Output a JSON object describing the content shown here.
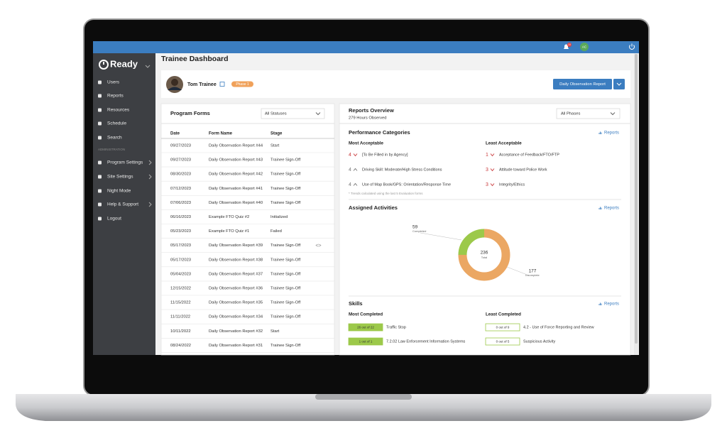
{
  "topbar": {
    "notifications": "10",
    "user_initials": "AC"
  },
  "sidebar": {
    "logo": "Ready",
    "items": [
      "Users",
      "Reports",
      "Resources",
      "Schedule",
      "Search"
    ],
    "section": "ADMINISTRATION",
    "admin_items": [
      "Program Settings",
      "Site Settings",
      "Night Mode",
      "Help & Support",
      "Logout"
    ]
  },
  "header": {
    "title": "Trainee Dashboard",
    "trainee": "Tom Trainee",
    "phase": "Phase 1",
    "button": "Daily Observation Report"
  },
  "program_forms": {
    "title": "Program Forms",
    "filter": "All Statuses",
    "columns": [
      "Date",
      "Form Name",
      "Stage"
    ],
    "rows": [
      [
        "09/27/2023",
        "Daily Observation Report #44",
        "Start"
      ],
      [
        "09/27/2023",
        "Daily Observation Report #43",
        "Trainee Sign-Off"
      ],
      [
        "08/30/2023",
        "Daily Observation Report #42",
        "Trainee Sign-Off"
      ],
      [
        "07/12/2023",
        "Daily Observation Report #41",
        "Trainee Sign-Off"
      ],
      [
        "07/06/2023",
        "Daily Observation Report #40",
        "Trainee Sign-Off"
      ],
      [
        "06/16/2023",
        "Example FTO Quiz #2",
        "Initialized"
      ],
      [
        "05/23/2023",
        "Example FTO Quiz #1",
        "Failed"
      ],
      [
        "05/17/2023",
        "Daily Observation Report #39",
        "Trainee Sign-Off"
      ],
      [
        "05/17/2023",
        "Daily Observation Report #38",
        "Trainee Sign-Off"
      ],
      [
        "05/04/2023",
        "Daily Observation Report #37",
        "Trainee Sign-Off"
      ],
      [
        "12/15/2022",
        "Daily Observation Report #36",
        "Trainee Sign-Off"
      ],
      [
        "11/15/2022",
        "Daily Observation Report #35",
        "Trainee Sign-Off"
      ],
      [
        "11/11/2022",
        "Daily Observation Report #34",
        "Trainee Sign-Off"
      ],
      [
        "10/11/2022",
        "Daily Observation Report #32",
        "Start"
      ],
      [
        "08/24/2022",
        "Daily Observation Report #31",
        "Trainee Sign-Off"
      ]
    ]
  },
  "reports_overview": {
    "title": "Reports Overview",
    "subtitle": "279 Hours Observed",
    "filter": "All Phases",
    "performance": {
      "title": "Performance Categories",
      "link": "Reports",
      "most_title": "Most Acceptable",
      "least_title": "Least Acceptable",
      "most": [
        {
          "score": 4,
          "trend": "down",
          "label": "[To Be Filled in by Agency]"
        },
        {
          "score": 4,
          "trend": "up",
          "label": "Driving Skill: Moderate/High Stress Conditions"
        },
        {
          "score": 4,
          "trend": "up",
          "label": "Use of Map Book/GPS: Orientation/Response Time"
        }
      ],
      "least": [
        {
          "score": 1,
          "trend": "down",
          "label": "Acceptance of Feedback/FTO/FTP"
        },
        {
          "score": 3,
          "trend": "down",
          "label": "Attitude toward Police Work"
        },
        {
          "score": 3,
          "trend": "down",
          "label": "Integrity/Ethics"
        }
      ],
      "note": "* Trends calculated using the last 5 Evaluation forms"
    },
    "activities": {
      "title": "Assigned Activities",
      "link": "Reports",
      "total": 236,
      "total_label": "Total",
      "segments": [
        {
          "name": "Completed",
          "value": 59,
          "color": "#9cc94a"
        },
        {
          "name": "Incomplete",
          "value": 177,
          "color": "#eba763"
        }
      ]
    },
    "skills": {
      "title": "Skills",
      "link": "Reports",
      "most_title": "Most Completed",
      "least_title": "Least Completed",
      "most": [
        {
          "progress": "26 out of 22",
          "label": "Traffic Stop"
        },
        {
          "progress": "1 out of 1",
          "label": "7.2.02 Law Enforcement Information Systems"
        }
      ],
      "least": [
        {
          "progress": "0 out of 9",
          "label": "4.2 - Use of Force Reporting and Review"
        },
        {
          "progress": "0 out of 5",
          "label": "Suspicious Activity"
        }
      ]
    }
  }
}
